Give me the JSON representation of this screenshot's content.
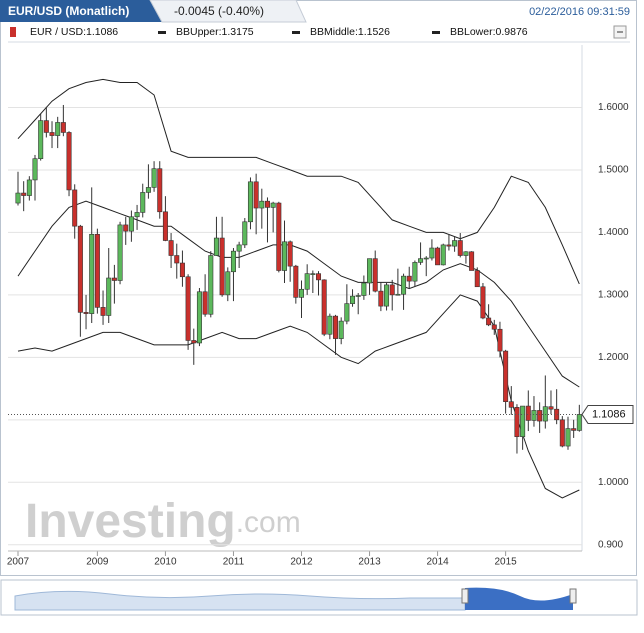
{
  "header": {
    "title": "EUR/USD (Monatlich)",
    "change": "-0.0045 (-0.40%)",
    "timestamp": "02/22/2016 09:31:59"
  },
  "legend": [
    "EUR / USD:1.1086",
    "BBUpper:1.3175",
    "BBMiddle:1.1526",
    "BBLower:0.9876"
  ],
  "watermark": {
    "brand": "Investing",
    "suffix": ".com"
  },
  "chart_data": {
    "type": "candlestick",
    "x": [
      "2007-11",
      "2007-12",
      "2008-01",
      "2008-02",
      "2008-03",
      "2008-04",
      "2008-05",
      "2008-06",
      "2008-07",
      "2008-08",
      "2008-09",
      "2008-10",
      "2008-11",
      "2008-12",
      "2009-01",
      "2009-02",
      "2009-03",
      "2009-04",
      "2009-05",
      "2009-06",
      "2009-07",
      "2009-08",
      "2009-09",
      "2009-10",
      "2009-11",
      "2009-12",
      "2010-01",
      "2010-02",
      "2010-03",
      "2010-04",
      "2010-05",
      "2010-06",
      "2010-07",
      "2010-08",
      "2010-09",
      "2010-10",
      "2010-11",
      "2010-12",
      "2011-01",
      "2011-02",
      "2011-03",
      "2011-04",
      "2011-05",
      "2011-06",
      "2011-07",
      "2011-08",
      "2011-09",
      "2011-10",
      "2011-11",
      "2011-12",
      "2012-01",
      "2012-02",
      "2012-03",
      "2012-04",
      "2012-05",
      "2012-06",
      "2012-07",
      "2012-08",
      "2012-09",
      "2012-10",
      "2012-11",
      "2012-12",
      "2013-01",
      "2013-02",
      "2013-03",
      "2013-04",
      "2013-05",
      "2013-06",
      "2013-07",
      "2013-08",
      "2013-09",
      "2013-10",
      "2013-11",
      "2013-12",
      "2014-01",
      "2014-02",
      "2014-03",
      "2014-04",
      "2014-05",
      "2014-06",
      "2014-07",
      "2014-08",
      "2014-09",
      "2014-10",
      "2014-11",
      "2014-12",
      "2015-01",
      "2015-02",
      "2015-03",
      "2015-04",
      "2015-05",
      "2015-06",
      "2015-07",
      "2015-08",
      "2015-09",
      "2015-10",
      "2015-11",
      "2015-12",
      "2016-01",
      "2016-02"
    ],
    "open": [
      1.447,
      1.463,
      1.459,
      1.484,
      1.518,
      1.579,
      1.56,
      1.555,
      1.576,
      1.56,
      1.468,
      1.41,
      1.272,
      1.27,
      1.397,
      1.28,
      1.267,
      1.327,
      1.323,
      1.412,
      1.402,
      1.425,
      1.432,
      1.464,
      1.472,
      1.502,
      1.433,
      1.387,
      1.363,
      1.351,
      1.329,
      1.227,
      1.223,
      1.305,
      1.269,
      1.363,
      1.391,
      1.3,
      1.337,
      1.37,
      1.38,
      1.417,
      1.481,
      1.439,
      1.45,
      1.44,
      1.447,
      1.339,
      1.385,
      1.346,
      1.296,
      1.309,
      1.334,
      1.334,
      1.324,
      1.237,
      1.266,
      1.23,
      1.258,
      1.286,
      1.298,
      1.299,
      1.319,
      1.358,
      1.306,
      1.282,
      1.316,
      1.3,
      1.301,
      1.33,
      1.322,
      1.352,
      1.358,
      1.359,
      1.375,
      1.348,
      1.38,
      1.378,
      1.387,
      1.363,
      1.369,
      1.339,
      1.313,
      1.263,
      1.252,
      1.245,
      1.21,
      1.129,
      1.12,
      1.073,
      1.122,
      1.099,
      1.115,
      1.098,
      1.121,
      1.117,
      1.1,
      1.058,
      1.086,
      1.083
    ],
    "high": [
      1.497,
      1.482,
      1.49,
      1.524,
      1.59,
      1.601,
      1.578,
      1.585,
      1.604,
      1.562,
      1.477,
      1.412,
      1.3,
      1.472,
      1.406,
      1.307,
      1.375,
      1.348,
      1.417,
      1.425,
      1.435,
      1.444,
      1.478,
      1.509,
      1.514,
      1.514,
      1.458,
      1.399,
      1.382,
      1.371,
      1.333,
      1.246,
      1.311,
      1.333,
      1.37,
      1.425,
      1.425,
      1.344,
      1.375,
      1.385,
      1.423,
      1.488,
      1.494,
      1.47,
      1.456,
      1.449,
      1.449,
      1.419,
      1.387,
      1.348,
      1.323,
      1.349,
      1.339,
      1.338,
      1.325,
      1.27,
      1.268,
      1.264,
      1.317,
      1.309,
      1.303,
      1.331,
      1.358,
      1.371,
      1.32,
      1.319,
      1.324,
      1.342,
      1.334,
      1.345,
      1.355,
      1.384,
      1.362,
      1.389,
      1.377,
      1.382,
      1.396,
      1.394,
      1.399,
      1.37,
      1.37,
      1.344,
      1.319,
      1.285,
      1.26,
      1.257,
      1.212,
      1.154,
      1.125,
      1.122,
      1.147,
      1.138,
      1.128,
      1.171,
      1.147,
      1.149,
      1.106,
      1.105,
      1.1,
      1.124
    ],
    "low": [
      1.443,
      1.434,
      1.451,
      1.451,
      1.515,
      1.552,
      1.535,
      1.535,
      1.554,
      1.458,
      1.39,
      1.233,
      1.245,
      1.255,
      1.27,
      1.252,
      1.255,
      1.286,
      1.317,
      1.38,
      1.385,
      1.404,
      1.424,
      1.454,
      1.465,
      1.422,
      1.386,
      1.343,
      1.326,
      1.313,
      1.212,
      1.188,
      1.218,
      1.265,
      1.264,
      1.363,
      1.297,
      1.29,
      1.29,
      1.343,
      1.375,
      1.405,
      1.397,
      1.406,
      1.384,
      1.4,
      1.336,
      1.319,
      1.321,
      1.286,
      1.263,
      1.3,
      1.303,
      1.299,
      1.234,
      1.229,
      1.204,
      1.221,
      1.253,
      1.281,
      1.269,
      1.292,
      1.3,
      1.304,
      1.274,
      1.275,
      1.275,
      1.299,
      1.276,
      1.31,
      1.313,
      1.348,
      1.33,
      1.355,
      1.349,
      1.347,
      1.371,
      1.369,
      1.36,
      1.35,
      1.339,
      1.313,
      1.261,
      1.25,
      1.236,
      1.2,
      1.11,
      1.108,
      1.046,
      1.052,
      1.082,
      1.089,
      1.079,
      1.086,
      1.109,
      1.093,
      1.056,
      1.052,
      1.071,
      1.081
    ],
    "close": [
      1.463,
      1.459,
      1.484,
      1.518,
      1.579,
      1.56,
      1.555,
      1.576,
      1.56,
      1.468,
      1.41,
      1.272,
      1.27,
      1.397,
      1.28,
      1.267,
      1.327,
      1.323,
      1.412,
      1.402,
      1.425,
      1.432,
      1.464,
      1.472,
      1.502,
      1.433,
      1.387,
      1.363,
      1.351,
      1.329,
      1.227,
      1.223,
      1.305,
      1.269,
      1.363,
      1.391,
      1.3,
      1.337,
      1.37,
      1.38,
      1.417,
      1.481,
      1.439,
      1.45,
      1.44,
      1.447,
      1.339,
      1.385,
      1.346,
      1.296,
      1.309,
      1.334,
      1.334,
      1.324,
      1.237,
      1.266,
      1.23,
      1.258,
      1.286,
      1.298,
      1.299,
      1.319,
      1.358,
      1.306,
      1.282,
      1.316,
      1.3,
      1.301,
      1.33,
      1.322,
      1.352,
      1.358,
      1.359,
      1.375,
      1.348,
      1.38,
      1.378,
      1.387,
      1.363,
      1.369,
      1.339,
      1.313,
      1.263,
      1.252,
      1.245,
      1.21,
      1.129,
      1.12,
      1.073,
      1.122,
      1.099,
      1.115,
      1.098,
      1.121,
      1.117,
      1.1,
      1.058,
      1.086,
      1.083,
      1.1086
    ],
    "up_color": "#5cb85c",
    "down_color": "#c9302c",
    "band_color": "#222222",
    "bands": [
      {
        "x": [
          "2007-11",
          "2008-02",
          "2008-05",
          "2008-08",
          "2008-11",
          "2009-02",
          "2009-05",
          "2009-08",
          "2009-11",
          "2010-02",
          "2010-05",
          "2010-08",
          "2010-11",
          "2011-02",
          "2011-05",
          "2011-08",
          "2011-11",
          "2012-02",
          "2012-05",
          "2012-08",
          "2012-11",
          "2013-02",
          "2013-05",
          "2013-08",
          "2013-11",
          "2014-02",
          "2014-05",
          "2014-08",
          "2014-11",
          "2015-02",
          "2015-05",
          "2015-08",
          "2015-11",
          "2016-02"
        ],
        "values": [
          1.55,
          1.58,
          1.61,
          1.63,
          1.64,
          1.645,
          1.64,
          1.64,
          1.62,
          1.53,
          1.52,
          1.52,
          1.52,
          1.52,
          1.52,
          1.51,
          1.5,
          1.49,
          1.49,
          1.49,
          1.48,
          1.45,
          1.42,
          1.41,
          1.4,
          1.4,
          1.39,
          1.4,
          1.44,
          1.49,
          1.48,
          1.44,
          1.38,
          1.3175
        ]
      },
      {
        "x": [
          "2007-11",
          "2008-02",
          "2008-05",
          "2008-08",
          "2008-11",
          "2009-02",
          "2009-05",
          "2009-08",
          "2009-11",
          "2010-02",
          "2010-05",
          "2010-08",
          "2010-11",
          "2011-02",
          "2011-05",
          "2011-08",
          "2011-11",
          "2012-02",
          "2012-05",
          "2012-08",
          "2012-11",
          "2013-02",
          "2013-05",
          "2013-08",
          "2013-11",
          "2014-02",
          "2014-05",
          "2014-08",
          "2014-11",
          "2015-02",
          "2015-05",
          "2015-08",
          "2015-11",
          "2016-02"
        ],
        "values": [
          1.33,
          1.37,
          1.41,
          1.44,
          1.45,
          1.44,
          1.43,
          1.42,
          1.41,
          1.41,
          1.39,
          1.37,
          1.36,
          1.36,
          1.37,
          1.38,
          1.38,
          1.37,
          1.35,
          1.33,
          1.32,
          1.32,
          1.32,
          1.31,
          1.32,
          1.34,
          1.35,
          1.34,
          1.32,
          1.29,
          1.25,
          1.21,
          1.17,
          1.1526
        ]
      },
      {
        "x": [
          "2007-11",
          "2008-02",
          "2008-05",
          "2008-08",
          "2008-11",
          "2009-02",
          "2009-05",
          "2009-08",
          "2009-11",
          "2010-02",
          "2010-05",
          "2010-08",
          "2010-11",
          "2011-02",
          "2011-05",
          "2011-08",
          "2011-11",
          "2012-02",
          "2012-05",
          "2012-08",
          "2012-11",
          "2013-02",
          "2013-05",
          "2013-08",
          "2013-11",
          "2014-02",
          "2014-05",
          "2014-08",
          "2014-11",
          "2015-02",
          "2015-05",
          "2015-08",
          "2015-11",
          "2016-02"
        ],
        "values": [
          1.21,
          1.215,
          1.21,
          1.22,
          1.23,
          1.24,
          1.24,
          1.23,
          1.22,
          1.22,
          1.22,
          1.23,
          1.24,
          1.23,
          1.23,
          1.24,
          1.25,
          1.24,
          1.22,
          1.2,
          1.19,
          1.21,
          1.22,
          1.23,
          1.24,
          1.27,
          1.3,
          1.29,
          1.25,
          1.13,
          1.05,
          0.99,
          0.975,
          0.9876
        ]
      }
    ],
    "ylim": [
      0.89,
      1.7
    ],
    "yticks": [
      {
        "value": 0.9,
        "label": "0.900"
      },
      {
        "value": 1.0,
        "label": "1.0000"
      },
      {
        "value": 1.1,
        "label": "1.1000"
      },
      {
        "value": 1.2,
        "label": "1.2000"
      },
      {
        "value": 1.3,
        "label": "1.3000"
      },
      {
        "value": 1.4,
        "label": "1.4000"
      },
      {
        "value": 1.5,
        "label": "1.5000"
      },
      {
        "value": 1.6,
        "label": "1.6000"
      }
    ],
    "xticks": [
      {
        "value": "2007-11",
        "label": "2007"
      },
      {
        "value": "2009-01",
        "label": "2009"
      },
      {
        "value": "2010-01",
        "label": "2010"
      },
      {
        "value": "2011-01",
        "label": "2011"
      },
      {
        "value": "2012-01",
        "label": "2012"
      },
      {
        "value": "2013-01",
        "label": "2013"
      },
      {
        "value": "2014-01",
        "label": "2014"
      },
      {
        "value": "2015-01",
        "label": "2015"
      }
    ],
    "grid": true
  }
}
